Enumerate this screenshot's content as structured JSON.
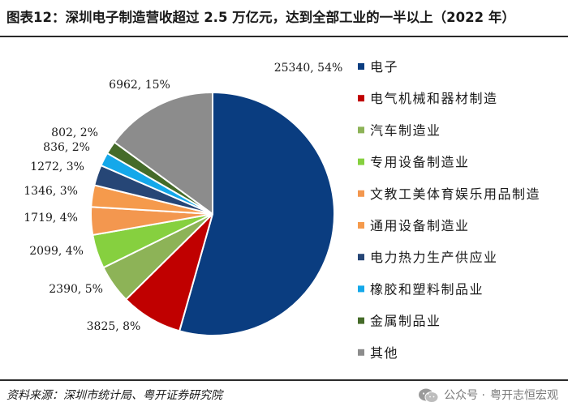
{
  "header": {
    "title": "图表12：深圳电子制造营收超过 2.5 万亿元，达到全部工业的一半以上（2022 年）"
  },
  "footer": {
    "source": "资料来源：深圳市统计局、粤开证券研究院",
    "watermark_dot": "公众号 ·",
    "watermark_name": "粤开志恒宏观",
    "wechat_icon": "wechat-icon"
  },
  "chart_data": {
    "type": "pie",
    "title": "",
    "unit": "亿元",
    "start_angle": "12 o'clock",
    "direction": "clockwise",
    "legend_position": "right",
    "slices": [
      {
        "name": "电子",
        "value": 25340,
        "percent": "54%",
        "label": "25340, 54%",
        "color": "#0a3d80"
      },
      {
        "name": "电气机械和器材制造",
        "value": 3825,
        "percent": "8%",
        "label": "3825, 8%",
        "color": "#c00000"
      },
      {
        "name": "汽车制造业",
        "value": 2390,
        "percent": "5%",
        "label": "2390, 5%",
        "color": "#8db357"
      },
      {
        "name": "专用设备制造业",
        "value": 2099,
        "percent": "4%",
        "label": "2099, 4%",
        "color": "#86d03f"
      },
      {
        "name": "文教工美体育娱乐用品制造",
        "value": 1719,
        "percent": "4%",
        "label": "1719, 4%",
        "color": "#f3974f"
      },
      {
        "name": "通用设备制造业",
        "value": 1346,
        "percent": "3%",
        "label": "1346, 3%",
        "color": "#f59a4c"
      },
      {
        "name": "电力热力生产供应业",
        "value": 1272,
        "percent": "3%",
        "label": "1272, 3%",
        "color": "#264676"
      },
      {
        "name": "橡胶和塑料制品业",
        "value": 836,
        "percent": "2%",
        "label": "836, 2%",
        "color": "#14a8ea"
      },
      {
        "name": "金属制品业",
        "value": 802,
        "percent": "2%",
        "label": "802, 2%",
        "color": "#456b29"
      },
      {
        "name": "其他",
        "value": 6962,
        "percent": "15%",
        "label": "6962, 15%",
        "color": "#8c8c8c"
      }
    ]
  }
}
